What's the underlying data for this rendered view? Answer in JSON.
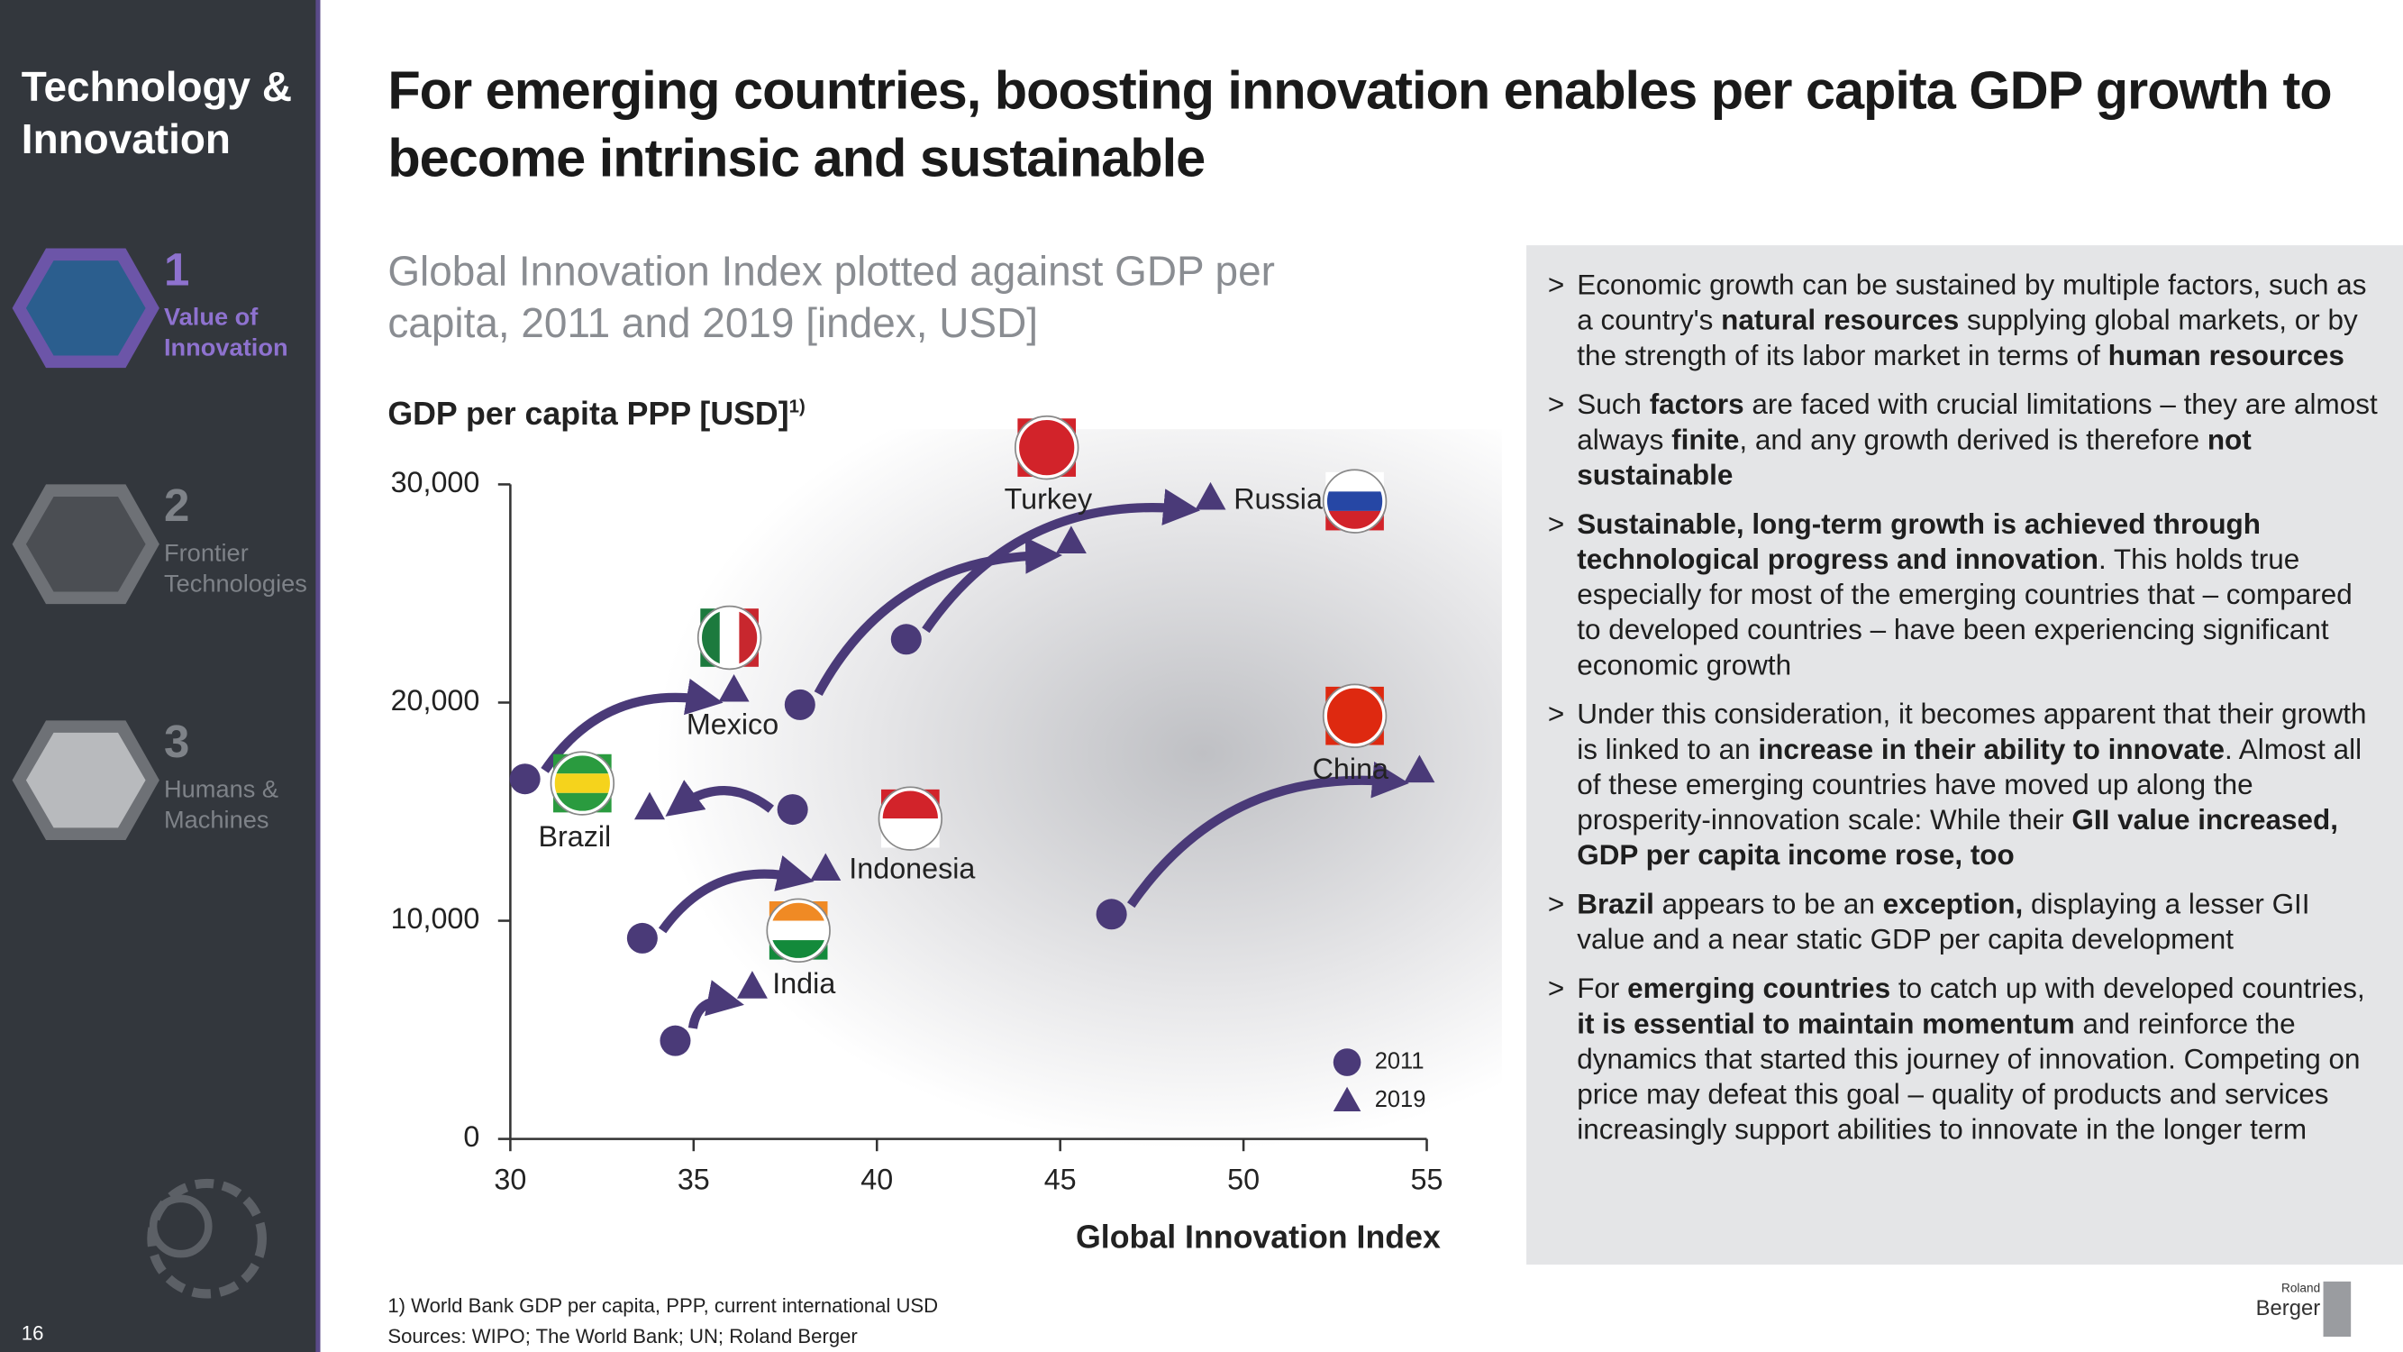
{
  "sidebar": {
    "title": "Technology & Innovation",
    "items": [
      {
        "number": "1",
        "label": "Value of Innovation",
        "active": true
      },
      {
        "number": "2",
        "label": "Frontier Technologies",
        "active": false
      },
      {
        "number": "3",
        "label": "Humans & Machines",
        "active": false
      }
    ]
  },
  "page_number": "16",
  "header": {
    "title": "For emerging countries, boosting innovation enables per capita GDP growth to become intrinsic and sustainable"
  },
  "chart_data": {
    "type": "scatter",
    "title": "Global Innovation Index plotted against GDP per capita, 2011 and 2019 [index, USD]",
    "ylabel": "GDP per capita PPP [USD]",
    "ylabel_note": "1)",
    "xlabel": "Global Innovation Index",
    "labels": [
      "Brazil",
      "Mexico",
      "Indonesia",
      "India",
      "Turkey",
      "Russia",
      "China"
    ],
    "series": [
      {
        "name": "2011",
        "marker": "circle",
        "color": "#4a3a78",
        "x": [
          37.7,
          30.4,
          33.6,
          34.5,
          37.9,
          40.8,
          46.4
        ],
        "values": [
          15100,
          16500,
          9200,
          4500,
          19900,
          22900,
          10300
        ]
      },
      {
        "name": "2019",
        "marker": "triangle",
        "color": "#4a3a78",
        "x": [
          33.8,
          36.1,
          38.6,
          36.6,
          45.3,
          49.1,
          54.8
        ],
        "values": [
          15200,
          20600,
          12400,
          7000,
          27400,
          29400,
          16900
        ]
      }
    ],
    "xlim": [
      30,
      55
    ],
    "xticks": [
      30,
      35,
      40,
      45,
      50,
      55
    ],
    "ylim": [
      0,
      30000
    ],
    "yticks": [
      0,
      {
        "value": 10000,
        "label": "10,000"
      },
      {
        "value": 20000,
        "label": "20,000"
      },
      {
        "value": 30000,
        "label": "30,000"
      }
    ],
    "legend": "bottom-right"
  },
  "bullets": [
    [
      {
        "text": "Economic growth can be sustained by multiple factors, such as a country's ",
        "bold": false
      },
      {
        "text": "natural resources",
        "bold": true
      },
      {
        "text": " supplying global markets, or by the strength of its labor market in terms of ",
        "bold": false
      },
      {
        "text": "human resources",
        "bold": true
      }
    ],
    [
      {
        "text": "Such ",
        "bold": false
      },
      {
        "text": "factors",
        "bold": true
      },
      {
        "text": " are faced with crucial limitations – they are almost always ",
        "bold": false
      },
      {
        "text": "finite",
        "bold": true
      },
      {
        "text": ", and any growth derived is therefore ",
        "bold": false
      },
      {
        "text": "not sustainable",
        "bold": true
      }
    ],
    [
      {
        "text": "Sustainable, long-term growth is achieved through technological progress and innovation",
        "bold": true
      },
      {
        "text": ". This holds true especially for most of the emerging countries that – compared to developed countries – have been experiencing significant economic growth",
        "bold": false
      }
    ],
    [
      {
        "text": "Under this consideration, it becomes apparent that their growth is linked to an ",
        "bold": false
      },
      {
        "text": "increase in their ability to innovate",
        "bold": true
      },
      {
        "text": ". Almost all of these emerging countries have moved up along the prosperity-innovation scale: While their ",
        "bold": false
      },
      {
        "text": "GII value increased, GDP per capita income rose, too",
        "bold": true
      }
    ],
    [
      {
        "text": "Brazil",
        "bold": true
      },
      {
        "text": " appears to be an ",
        "bold": false
      },
      {
        "text": "exception,",
        "bold": true
      },
      {
        "text": " displaying a lesser GII value and a near static GDP per capita development",
        "bold": false
      }
    ],
    [
      {
        "text": "For ",
        "bold": false
      },
      {
        "text": "emerging countries",
        "bold": true
      },
      {
        "text": " to catch up with developed countries, ",
        "bold": false
      },
      {
        "text": "it is essential to maintain momentum",
        "bold": true
      },
      {
        "text": " and reinforce the dynamics that started this journey of innovation. Competing on price may defeat this goal – quality of products and services increasingly support abilities to innovate in the longer term",
        "bold": false
      }
    ]
  ],
  "footnotes": [
    "1) World Bank GDP per capita, PPP, current international USD",
    "Sources: WIPO; The World Bank; UN; Roland Berger"
  ],
  "logo": {
    "small": "Roland",
    "large": "Berger"
  }
}
